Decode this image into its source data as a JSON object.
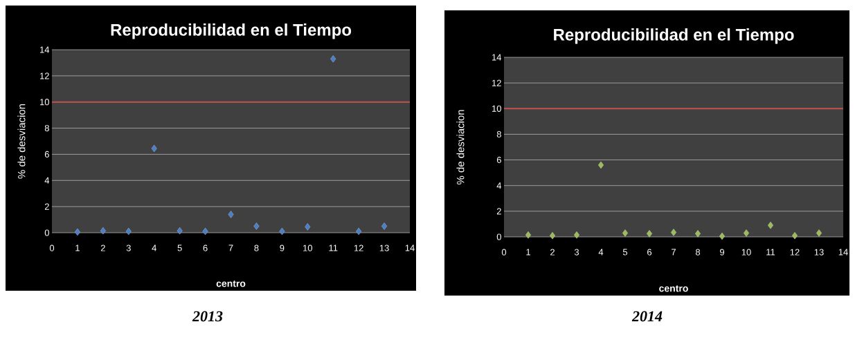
{
  "chart_data": [
    {
      "type": "scatter",
      "title": "Reproducibilidad en el Tiempo",
      "xlabel": "centro",
      "ylabel": "% de desviacion",
      "annotations": [
        "2013"
      ],
      "x": [
        1,
        2,
        3,
        4,
        5,
        6,
        7,
        8,
        9,
        10,
        11,
        12,
        13
      ],
      "series": [
        {
          "color": "#4a7fc8",
          "values": [
            0.05,
            0.15,
            0.1,
            6.45,
            0.15,
            0.1,
            1.4,
            0.5,
            0.1,
            0.45,
            13.3,
            0.1,
            0.5
          ]
        }
      ],
      "marker": "diamond",
      "xlim": [
        0,
        14
      ],
      "ylim": [
        0,
        14
      ],
      "xticks": [
        0,
        1,
        2,
        3,
        4,
        5,
        6,
        7,
        8,
        9,
        10,
        11,
        12,
        13,
        14
      ],
      "yticks": [
        0,
        2,
        4,
        6,
        8,
        10,
        12,
        14
      ],
      "grid": "y",
      "ref_lines": [
        {
          "axis": "y",
          "value": 10,
          "color": "#c0504d"
        }
      ]
    },
    {
      "type": "scatter",
      "title": "Reproducibilidad en el Tiempo",
      "xlabel": "centro",
      "ylabel": "% de desviacion",
      "annotations": [
        "2014"
      ],
      "x": [
        1,
        2,
        3,
        4,
        5,
        6,
        7,
        8,
        9,
        10,
        11,
        12,
        13
      ],
      "series": [
        {
          "color": "#9bbb59",
          "values": [
            0.15,
            0.1,
            0.15,
            5.6,
            0.3,
            0.25,
            0.35,
            0.25,
            0.05,
            0.3,
            0.9,
            0.1,
            0.3
          ]
        }
      ],
      "marker": "diamond",
      "xlim": [
        0,
        14
      ],
      "ylim": [
        0,
        14
      ],
      "xticks": [
        0,
        1,
        2,
        3,
        4,
        5,
        6,
        7,
        8,
        9,
        10,
        11,
        12,
        13,
        14
      ],
      "yticks": [
        0,
        2,
        4,
        6,
        8,
        10,
        12,
        14
      ],
      "grid": "y",
      "ref_lines": [
        {
          "axis": "y",
          "value": 10,
          "color": "#c0504d"
        }
      ]
    }
  ]
}
